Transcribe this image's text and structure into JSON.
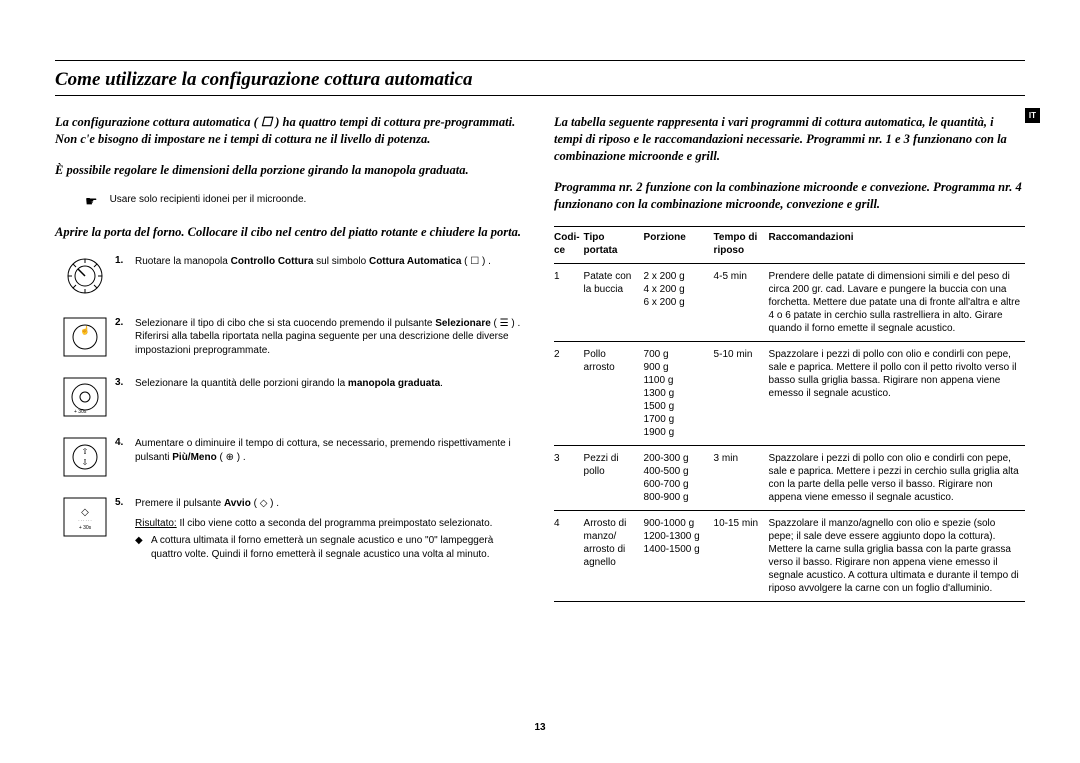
{
  "page": {
    "title": "Come utilizzare la configurazione cottura automatica",
    "badge": "IT",
    "page_number": "13"
  },
  "left": {
    "intro1": "La configurazione cottura automatica ( ☐ ) ha quattro tempi di cottura pre-programmati. Non c'e bisogno di impostare ne i tempi di cottura ne il livello di potenza.",
    "intro2": "È possibile regolare le dimensioni della porzione girando la manopola graduata.",
    "pointer_symbol": "☛",
    "pointer_note": "Usare solo recipienti idonei per il microonde.",
    "intro3": "Aprire la porta del forno. Collocare il cibo nel centro del piatto rotante e chiudere la porta.",
    "steps": [
      {
        "num": "1.",
        "html": "Ruotare la manopola <b>Controllo Cottura</b> sul simbolo <b>Cottura Automatica</b> ( ☐ ) ."
      },
      {
        "num": "2.",
        "html": "Selezionare il tipo di cibo che si sta cuocendo premendo il pulsante <b>Selezionare</b> ( ☰ ) . Riferirsi alla tabella riportata nella pagina seguente per una descrizione delle diverse impostazioni preprogrammate."
      },
      {
        "num": "3.",
        "html": "Selezionare la quantità delle porzioni girando la <b>manopola graduata</b>."
      },
      {
        "num": "4.",
        "html": "Aumentare o diminuire il tempo di cottura, se necessario, premendo rispettivamente i pulsanti <b>Più/Meno</b> ( ⊕ ) ."
      },
      {
        "num": "5.",
        "html": "Premere il pulsante <b>Avvio</b> ( ◇ ) .",
        "result_label": "Risultato:",
        "result_text": "Il cibo viene cotto a seconda del programma preimpostato selezionato.",
        "bullet_sym": "◆",
        "bullet": "A cottura ultimata il forno emetterà un segnale acustico e uno \"0\" lampeggerà quattro volte. Quindi il forno emetterà il segnale acustico una volta al minuto."
      }
    ]
  },
  "right": {
    "intro1": "La tabella seguente rappresenta i vari programmi di cottura automatica, le quantità, i tempi di riposo e le raccomandazioni necessarie. Programmi nr.  1 e 3 funzionano con la combinazione microonde e grill.",
    "intro2": "Programma nr. 2 funzione con la combinazione microonde e convezione. Programma nr. 4 funzionano con la combinazione microonde, convezione e grill.",
    "headers": {
      "code": "Codi-ce",
      "type": "Tipo portata",
      "portion": "Porzione",
      "rest": "Tempo di riposo",
      "rec": "Raccomandazioni"
    },
    "rows": [
      {
        "code": "1",
        "type": "Patate con la buccia",
        "portion": "2 x 200 g\n4 x 200 g\n6 x 200 g",
        "rest": "4-5 min",
        "rec": "Prendere delle patate di dimensioni simili e del peso di circa 200 gr. cad. Lavare e pungere la buccia con una forchetta. Mettere due patate una di fronte all'altra e altre 4 o 6 patate in cerchio sulla rastrelliera in alto. Girare quando il forno emette il segnale acustico."
      },
      {
        "code": "2",
        "type": "Pollo arrosto",
        "portion": "700 g\n900 g\n1100 g\n1300 g\n1500 g\n1700 g\n1900 g",
        "rest": "5-10 min",
        "rec": "Spazzolare i pezzi di pollo con olio e condirli con pepe, sale e paprica. Mettere il pollo con il petto rivolto verso il basso sulla griglia bassa. Rigirare non appena viene emesso il segnale acustico."
      },
      {
        "code": "3",
        "type": "Pezzi di pollo",
        "portion": "200-300 g\n400-500 g\n600-700 g\n800-900 g",
        "rest": "3 min",
        "rec": "Spazzolare i pezzi di pollo con olio e condirli con pepe, sale e paprica. Mettere i pezzi in cerchio sulla griglia alta con la parte della pelle verso il basso. Rigirare non appena viene emesso il segnale acustico."
      },
      {
        "code": "4",
        "type": "Arrosto di manzo/ arrosto di agnello",
        "portion": "900-1000 g\n1200-1300 g\n1400-1500 g",
        "rest": "10-15 min",
        "rec": "Spazzolare il manzo/agnello con olio e spezie (solo pepe; il sale deve essere aggiunto dopo la cottura). Mettere la carne sulla griglia bassa con la parte grassa verso il basso. Rigirare non appena viene emesso il segnale acustico. A cottura ultimata e durante il tempo di riposo avvolgere la carne con un foglio d'alluminio."
      }
    ]
  }
}
